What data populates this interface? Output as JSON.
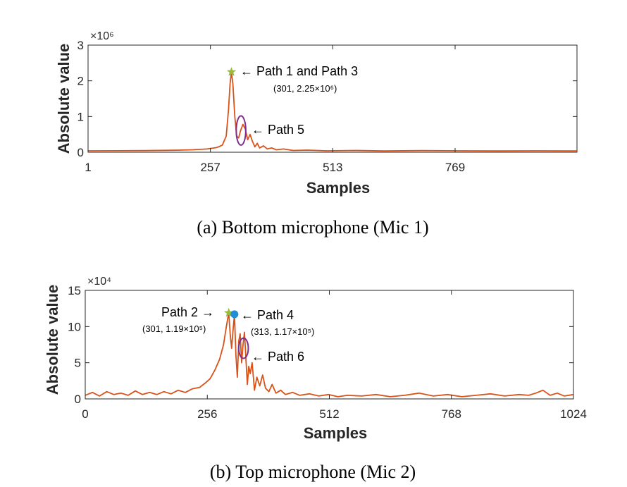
{
  "colors": {
    "line": "#d95319",
    "star": "#9bbb3b",
    "dot": "#1f8fd8",
    "ellipse": "#7e2f8e",
    "axis": "#262626"
  },
  "chart_data": [
    {
      "type": "line",
      "caption": "(a)  Bottom microphone (Mic 1)",
      "xlabel": "Samples",
      "ylabel": "Absolute value",
      "xlim": [
        1,
        1024
      ],
      "ylim": [
        0,
        3000000
      ],
      "xticks": [
        1,
        257,
        513,
        769
      ],
      "xtick_labels": [
        "1",
        "257",
        "513",
        "769"
      ],
      "yticks": [
        0,
        1,
        2,
        3
      ],
      "ytick_labels": [
        "0",
        "1",
        "2",
        "3"
      ],
      "y_multiplier": "×10⁶",
      "y_scale": 1000000,
      "series": [
        {
          "x": [
            1,
            60,
            120,
            180,
            220,
            250,
            270,
            282,
            290,
            295,
            298,
            301,
            304,
            308,
            312,
            316,
            320,
            325,
            330,
            335,
            340,
            345,
            350,
            355,
            360,
            368,
            376,
            385,
            395,
            410,
            430,
            460,
            500,
            560,
            620,
            700,
            780,
            860,
            940,
            1024
          ],
          "y": [
            40000,
            42000,
            45000,
            55000,
            70000,
            90000,
            130000,
            200000,
            450000,
            1200000,
            1900000,
            2250000,
            1900000,
            1000000,
            450000,
            400000,
            600000,
            780000,
            650000,
            350000,
            500000,
            300000,
            150000,
            250000,
            120000,
            180000,
            90000,
            120000,
            70000,
            90000,
            50000,
            60000,
            40000,
            50000,
            35000,
            45000,
            40000,
            35000,
            40000,
            35000
          ]
        }
      ],
      "annotations": [
        {
          "text": "← Path 1 and Path 3",
          "sub": "(301, 2.25×10⁶)"
        },
        {
          "text": "← Path 5"
        }
      ],
      "markers": [
        {
          "kind": "star",
          "x": 301,
          "y": 2250000
        }
      ],
      "ellipses": [
        {
          "x": 321,
          "y": 610000,
          "rx": 10,
          "ry": 820000
        }
      ]
    },
    {
      "type": "line",
      "caption": "(b)  Top microphone (Mic 2)",
      "xlabel": "Samples",
      "ylabel": "Absolute value",
      "xlim": [
        0,
        1024
      ],
      "ylim": [
        0,
        150000
      ],
      "xticks": [
        0,
        256,
        512,
        768,
        1024
      ],
      "xtick_labels": [
        "0",
        "256",
        "512",
        "768",
        "1024"
      ],
      "yticks": [
        0,
        5,
        10,
        15
      ],
      "ytick_labels": [
        "0",
        "5",
        "10",
        "15"
      ],
      "y_multiplier": "×10⁴",
      "y_scale": 10000,
      "series": [
        {
          "x": [
            0,
            15,
            30,
            45,
            60,
            75,
            90,
            105,
            120,
            135,
            150,
            165,
            180,
            195,
            210,
            225,
            240,
            252,
            262,
            272,
            282,
            290,
            296,
            301,
            304,
            307,
            310,
            313,
            316,
            319,
            322,
            325,
            328,
            331,
            334,
            337,
            340,
            343,
            346,
            350,
            355,
            360,
            366,
            372,
            378,
            385,
            392,
            400,
            410,
            420,
            435,
            450,
            470,
            490,
            510,
            530,
            550,
            580,
            610,
            640,
            670,
            700,
            730,
            760,
            790,
            820,
            850,
            880,
            910,
            930,
            945,
            960,
            975,
            990,
            1005,
            1024
          ],
          "y": [
            5000,
            9000,
            4000,
            10000,
            6000,
            8000,
            5000,
            11000,
            6000,
            9000,
            6000,
            10000,
            7000,
            12000,
            9000,
            14000,
            16000,
            22000,
            28000,
            40000,
            55000,
            75000,
            100000,
            119000,
            90000,
            70000,
            95000,
            117000,
            60000,
            30000,
            80000,
            90000,
            50000,
            75000,
            92000,
            55000,
            20000,
            45000,
            35000,
            50000,
            12000,
            30000,
            18000,
            33000,
            15000,
            10000,
            20000,
            8000,
            12000,
            6000,
            9000,
            5000,
            7000,
            4000,
            6000,
            3000,
            5000,
            4000,
            6000,
            3000,
            5000,
            8000,
            4000,
            6000,
            3000,
            5000,
            7000,
            4000,
            6000,
            5000,
            8000,
            12000,
            5000,
            8000,
            4000,
            6000
          ]
        }
      ],
      "annotations": [
        {
          "text": "Path 2 →",
          "sub": "(301, 1.19×10⁵)"
        },
        {
          "text": "← Path 4",
          "sub": "(313, 1.17×10⁵)"
        },
        {
          "text": "← Path 6"
        }
      ],
      "markers": [
        {
          "kind": "star",
          "x": 301,
          "y": 119000
        },
        {
          "kind": "dot",
          "x": 313,
          "y": 117000
        }
      ],
      "ellipses": [
        {
          "x": 332,
          "y": 70000,
          "rx": 10,
          "ry": 28000
        }
      ]
    }
  ]
}
